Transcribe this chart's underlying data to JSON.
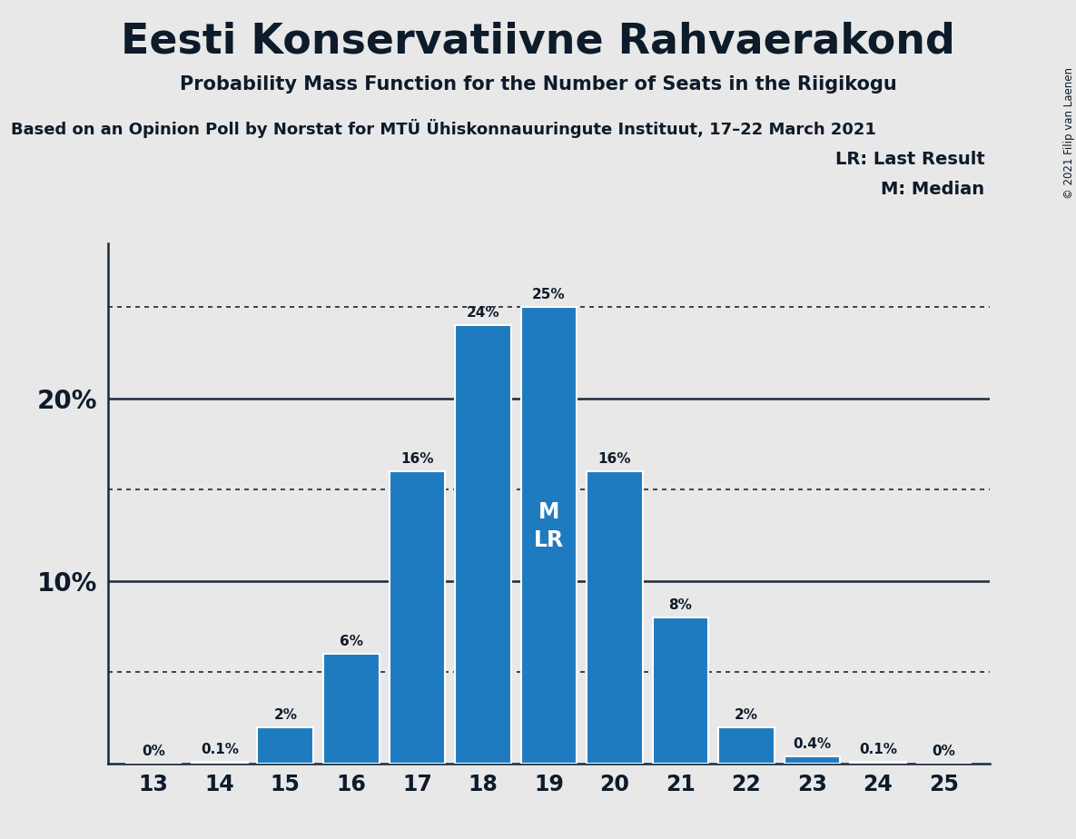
{
  "title": "Eesti Konservatiivne Rahvaerakond",
  "subtitle": "Probability Mass Function for the Number of Seats in the Riigikogu",
  "source_line": "Based on an Opinion Poll by Norstat for MTÜ Ühiskonnauuringute Instituut, 17–22 March 2021",
  "copyright": "© 2021 Filip van Laenen",
  "seats": [
    13,
    14,
    15,
    16,
    17,
    18,
    19,
    20,
    21,
    22,
    23,
    24,
    25
  ],
  "probabilities": [
    0.0,
    0.001,
    0.02,
    0.06,
    0.16,
    0.24,
    0.25,
    0.16,
    0.08,
    0.02,
    0.004,
    0.001,
    0.0
  ],
  "labels": [
    "0%",
    "0.1%",
    "2%",
    "6%",
    "16%",
    "24%",
    "25%",
    "16%",
    "8%",
    "2%",
    "0.4%",
    "0.1%",
    "0%"
  ],
  "bar_color": "#1f7bbf",
  "bg_color": "#e8e8e8",
  "plot_bg_color": "#e8e8e8",
  "median_seat": 19,
  "last_result_seat": 19,
  "solid_yticks": [
    0.1,
    0.2
  ],
  "dotted_yticks": [
    0.05,
    0.15,
    0.25
  ],
  "ylim": [
    0,
    0.285
  ],
  "legend_text_LR": "LR: Last Result",
  "legend_text_M": "M: Median",
  "text_color": "#0d1b2a",
  "line_color": "#1a2a3a"
}
